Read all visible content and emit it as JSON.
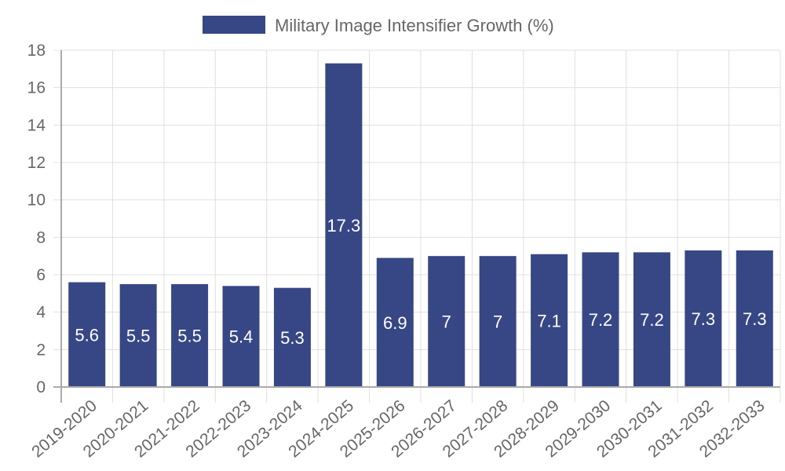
{
  "chart_data": {
    "type": "bar",
    "title": "",
    "legend": {
      "position": "top",
      "entries": [
        "Military Image Intensifier Growth (%)"
      ]
    },
    "xlabel": "",
    "ylabel": "",
    "ylim": [
      0,
      18
    ],
    "yticks": [
      0,
      2,
      4,
      6,
      8,
      10,
      12,
      14,
      16,
      18
    ],
    "grid": true,
    "categories": [
      "2019-2020",
      "2020-2021",
      "2021-2022",
      "2022-2023",
      "2023-2024",
      "2024-2025",
      "2025-2026",
      "2026-2027",
      "2027-2028",
      "2028-2029",
      "2029-2030",
      "2030-2031",
      "2031-2032",
      "2032-2033"
    ],
    "series": [
      {
        "name": "Military Image Intensifier Growth (%)",
        "color": "#374785",
        "values": [
          5.6,
          5.5,
          5.5,
          5.4,
          5.3,
          17.3,
          6.9,
          7,
          7,
          7.1,
          7.2,
          7.2,
          7.3,
          7.3
        ],
        "data_labels": [
          "5.6",
          "5.5",
          "5.5",
          "5.4",
          "5.3",
          "17.3",
          "6.9",
          "7",
          "7",
          "7.1",
          "7.2",
          "7.2",
          "7.3",
          "7.3"
        ]
      }
    ]
  },
  "colors": {
    "bar": "#374785",
    "grid": "#e0e0e0",
    "axis": "#aaaaaa",
    "text": "#666666"
  }
}
